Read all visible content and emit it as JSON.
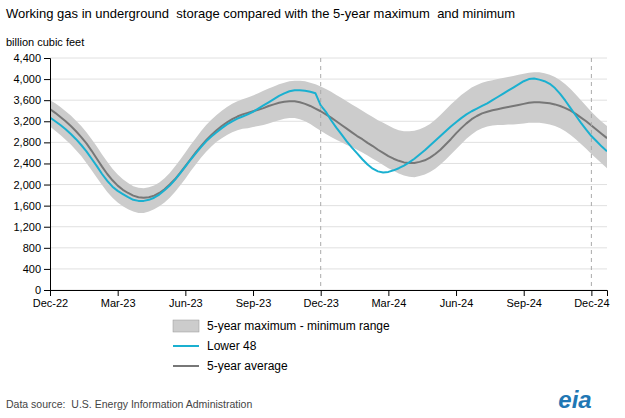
{
  "chart_data": {
    "type": "line",
    "title": "Working gas in underground  storage compared with the 5-year maximum  and minimum",
    "y_label": "billion cubic feet",
    "source": "Data source:  U.S. Energy Information Administration",
    "logo": "eia",
    "categories": [
      "Dec-22",
      null,
      null,
      null,
      null,
      null,
      null,
      null,
      null,
      null,
      null,
      null,
      null,
      "Mar-23",
      null,
      null,
      null,
      null,
      null,
      null,
      null,
      null,
      null,
      null,
      null,
      null,
      "Jun-23",
      null,
      null,
      null,
      null,
      null,
      null,
      null,
      null,
      null,
      null,
      null,
      null,
      "Sep-23",
      null,
      null,
      null,
      null,
      null,
      null,
      null,
      null,
      null,
      null,
      null,
      null,
      "Dec-23",
      null,
      null,
      null,
      null,
      null,
      null,
      null,
      null,
      null,
      null,
      null,
      null,
      "Mar-24",
      null,
      null,
      null,
      null,
      null,
      null,
      null,
      null,
      null,
      null,
      null,
      null,
      "Jun-24",
      null,
      null,
      null,
      null,
      null,
      null,
      null,
      null,
      null,
      null,
      null,
      null,
      "Sep-24",
      null,
      null,
      null,
      null,
      null,
      null,
      null,
      null,
      null,
      null,
      null,
      null,
      "Dec-24",
      null,
      null,
      null
    ],
    "series": [
      {
        "name": "5-year maximum - minimum range",
        "type": "band",
        "color": "#cccccc",
        "upper": [
          3600,
          3540,
          3470,
          3390,
          3310,
          3210,
          3110,
          2990,
          2860,
          2720,
          2570,
          2430,
          2300,
          2190,
          2100,
          2030,
          1970,
          1940,
          1930,
          1950,
          1980,
          2040,
          2120,
          2220,
          2340,
          2470,
          2610,
          2750,
          2880,
          3010,
          3130,
          3230,
          3320,
          3400,
          3470,
          3530,
          3580,
          3620,
          3650,
          3690,
          3730,
          3780,
          3820,
          3860,
          3900,
          3930,
          3960,
          3970,
          3970,
          3960,
          3930,
          3900,
          3860,
          3810,
          3760,
          3700,
          3640,
          3580,
          3520,
          3460,
          3400,
          3340,
          3280,
          3220,
          3170,
          3120,
          3070,
          3030,
          3010,
          3010,
          3020,
          3050,
          3090,
          3150,
          3230,
          3320,
          3420,
          3520,
          3610,
          3700,
          3770,
          3840,
          3890,
          3930,
          3960,
          3980,
          4000,
          4020,
          4040,
          4060,
          4080,
          4100,
          4120,
          4130,
          4130,
          4110,
          4080,
          4040,
          3980,
          3900,
          3810,
          3710,
          3600,
          3490,
          3380,
          3280,
          3190,
          3110
        ],
        "lower": [
          3100,
          3020,
          2940,
          2850,
          2760,
          2650,
          2540,
          2410,
          2270,
          2130,
          1990,
          1860,
          1750,
          1660,
          1590,
          1530,
          1490,
          1460,
          1460,
          1490,
          1530,
          1590,
          1660,
          1750,
          1860,
          1980,
          2110,
          2250,
          2380,
          2510,
          2620,
          2720,
          2810,
          2880,
          2940,
          2990,
          3030,
          3060,
          3070,
          3090,
          3110,
          3130,
          3160,
          3190,
          3220,
          3250,
          3260,
          3260,
          3240,
          3200,
          3150,
          3080,
          3020,
          2960,
          2900,
          2850,
          2800,
          2750,
          2710,
          2660,
          2610,
          2550,
          2490,
          2430,
          2370,
          2310,
          2260,
          2210,
          2170,
          2150,
          2140,
          2160,
          2190,
          2240,
          2300,
          2380,
          2470,
          2570,
          2670,
          2770,
          2870,
          2950,
          3020,
          3070,
          3100,
          3120,
          3130,
          3130,
          3140,
          3140,
          3150,
          3160,
          3170,
          3170,
          3170,
          3160,
          3140,
          3110,
          3070,
          3010,
          2940,
          2860,
          2770,
          2680,
          2580,
          2490,
          2400,
          2310
        ]
      },
      {
        "name": "Lower 48",
        "type": "line",
        "color": "#1ab0d0",
        "values": [
          3270,
          3200,
          3130,
          3050,
          2960,
          2860,
          2750,
          2630,
          2490,
          2350,
          2200,
          2070,
          1960,
          1880,
          1820,
          1760,
          1710,
          1690,
          1690,
          1710,
          1750,
          1810,
          1890,
          1980,
          2090,
          2210,
          2340,
          2470,
          2590,
          2710,
          2820,
          2910,
          2990,
          3070,
          3140,
          3200,
          3250,
          3290,
          3330,
          3380,
          3440,
          3500,
          3560,
          3620,
          3680,
          3730,
          3770,
          3790,
          3790,
          3780,
          3760,
          3730,
          3500,
          3380,
          3220,
          3080,
          2950,
          2820,
          2700,
          2590,
          2480,
          2380,
          2300,
          2250,
          2230,
          2240,
          2270,
          2310,
          2360,
          2420,
          2490,
          2570,
          2650,
          2740,
          2830,
          2920,
          3010,
          3100,
          3180,
          3260,
          3330,
          3390,
          3440,
          3490,
          3540,
          3600,
          3660,
          3720,
          3780,
          3840,
          3900,
          3960,
          4000,
          4010,
          3990,
          3960,
          3910,
          3830,
          3720,
          3590,
          3450,
          3310,
          3170,
          3040,
          2920,
          2820,
          2720,
          2630
        ]
      },
      {
        "name": "5-year average",
        "type": "line",
        "color": "#777777",
        "values": [
          3430,
          3360,
          3280,
          3200,
          3110,
          3010,
          2900,
          2780,
          2640,
          2490,
          2340,
          2200,
          2080,
          1980,
          1900,
          1840,
          1790,
          1760,
          1750,
          1760,
          1790,
          1840,
          1910,
          2000,
          2100,
          2220,
          2350,
          2480,
          2610,
          2730,
          2840,
          2940,
          3030,
          3110,
          3180,
          3240,
          3290,
          3330,
          3360,
          3390,
          3420,
          3450,
          3490,
          3520,
          3550,
          3570,
          3580,
          3580,
          3560,
          3530,
          3490,
          3440,
          3390,
          3330,
          3270,
          3200,
          3130,
          3060,
          2990,
          2920,
          2860,
          2790,
          2730,
          2660,
          2600,
          2540,
          2490,
          2450,
          2420,
          2410,
          2410,
          2430,
          2460,
          2510,
          2580,
          2660,
          2760,
          2860,
          2970,
          3070,
          3160,
          3240,
          3300,
          3350,
          3380,
          3410,
          3430,
          3450,
          3470,
          3490,
          3510,
          3530,
          3550,
          3560,
          3560,
          3550,
          3540,
          3520,
          3490,
          3450,
          3400,
          3340,
          3270,
          3200,
          3120,
          3040,
          2960,
          2880
        ]
      }
    ],
    "vlines": [
      "Dec-23",
      "Dec-24"
    ],
    "ylim": [
      0,
      4400
    ],
    "yticks": [
      0,
      400,
      800,
      {
        "value": 1200,
        "label": "1,200"
      },
      {
        "value": 1600,
        "label": "1,600"
      },
      {
        "value": 2000,
        "label": "2,000"
      },
      {
        "value": 2400,
        "label": "2,400"
      },
      {
        "value": 2800,
        "label": "2,800"
      },
      {
        "value": 3200,
        "label": "3,200"
      },
      {
        "value": 3600,
        "label": "3,600"
      },
      {
        "value": 4000,
        "label": "4,000"
      },
      {
        "value": 4400,
        "label": "4,400"
      }
    ],
    "grid": true,
    "legend": "bottom"
  }
}
